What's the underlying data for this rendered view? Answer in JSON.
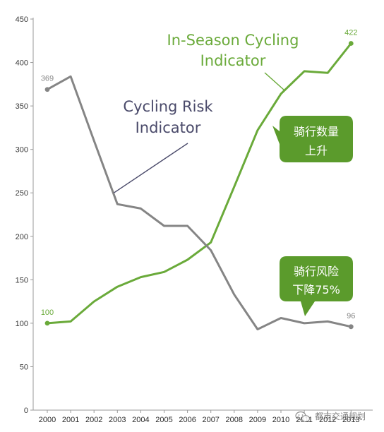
{
  "chart_data": {
    "type": "line",
    "x": [
      "2000",
      "2001",
      "2002",
      "2003",
      "2004",
      "2005",
      "2006",
      "2007",
      "2008",
      "2009",
      "2010",
      "2011",
      "2012",
      "2013"
    ],
    "ylim": [
      0,
      450
    ],
    "yticks": [
      0,
      50,
      100,
      150,
      200,
      250,
      300,
      350,
      400,
      450
    ],
    "grid": false,
    "series": [
      {
        "color": "#6aaa3a",
        "values": [
          100,
          102,
          125,
          142,
          153,
          159,
          173,
          193,
          257,
          322,
          364,
          390,
          388,
          422
        ]
      },
      {
        "color": "#858585",
        "values": [
          369,
          384,
          310,
          237,
          232,
          212,
          212,
          184,
          133,
          93,
          106,
          100,
          102,
          96
        ]
      }
    ],
    "data_labels": [
      {
        "text": "100",
        "color": "#6aaa3a"
      },
      {
        "text": "422",
        "color": "#6aaa3a"
      },
      {
        "text": "369",
        "color": "#858585"
      },
      {
        "text": "96",
        "color": "#858585"
      }
    ],
    "annotations": {
      "in_season": {
        "lines": [
          "In-Season Cycling",
          "Indicator"
        ],
        "color": "#6aaa3a"
      },
      "risk": {
        "lines": [
          "Cycling Risk",
          "Indicator"
        ],
        "color": "#4a4a6a"
      },
      "callout_up": {
        "lines": [
          "骑行数量",
          "上升"
        ],
        "color": "#5b9b2c"
      },
      "callout_down": {
        "lines": [
          "骑行风险",
          "下降75%"
        ],
        "color": "#5b9b2c"
      }
    }
  },
  "watermark": {
    "text": "都市交通规划",
    "icon": "wechat-icon"
  }
}
